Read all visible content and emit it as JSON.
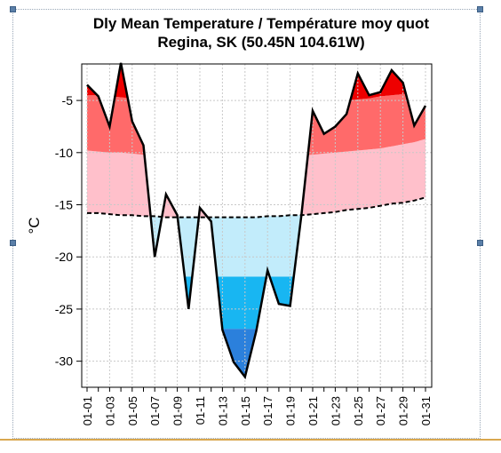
{
  "chart_data": {
    "type": "area",
    "title": "Dly Mean Temperature / Température moy quot",
    "subtitle": "Regina, SK (50.45N 104.61W)",
    "xlabel": "",
    "ylabel": "°C",
    "ylim": [
      -32.5,
      -1.5
    ],
    "yticks": [
      -5,
      -10,
      -15,
      -20,
      -25,
      -30
    ],
    "ytick_labels": [
      "-5",
      "-10",
      "-15",
      "-20",
      "-25",
      "-30"
    ],
    "x": [
      "01-01",
      "01-02",
      "01-03",
      "01-04",
      "01-05",
      "01-06",
      "01-07",
      "01-08",
      "01-09",
      "01-10",
      "01-11",
      "01-12",
      "01-13",
      "01-14",
      "01-15",
      "01-16",
      "01-17",
      "01-18",
      "01-19",
      "01-20",
      "01-21",
      "01-22",
      "01-23",
      "01-24",
      "01-25",
      "01-26",
      "01-27",
      "01-28",
      "01-29",
      "01-30",
      "01-31"
    ],
    "xtick_labels": [
      "01-01",
      "01-03",
      "01-05",
      "01-07",
      "01-09",
      "01-11",
      "01-13",
      "01-15",
      "01-17",
      "01-19",
      "01-21",
      "01-23",
      "01-25",
      "01-27",
      "01-29",
      "01-31"
    ],
    "grid": true,
    "series": [
      {
        "name": "",
        "values": [
          -3.5,
          -4.6,
          -7.5,
          -1.4,
          -7.0,
          -9.3,
          -20.0,
          -14.0,
          -16.0,
          -25.0,
          -15.3,
          -16.6,
          -27.0,
          -30.1,
          -31.5,
          -27.1,
          -21.3,
          -24.5,
          -24.7,
          -16.0,
          -6.0,
          -8.2,
          -7.5,
          -6.3,
          -2.4,
          -4.5,
          -4.2,
          -2.1,
          -3.3,
          -7.4,
          -5.5
        ]
      },
      {
        "name": "",
        "values": [
          -15.8,
          -15.8,
          -15.9,
          -16.0,
          -16.0,
          -16.1,
          -16.1,
          -16.2,
          -16.2,
          -16.2,
          -16.2,
          -16.2,
          -16.2,
          -16.2,
          -16.2,
          -16.2,
          -16.1,
          -16.1,
          -16.0,
          -16.0,
          -15.9,
          -15.8,
          -15.7,
          -15.5,
          -15.4,
          -15.3,
          -15.1,
          -14.9,
          -14.8,
          -14.6,
          -14.3
        ]
      }
    ],
    "bands": {
      "upper_outer": [
        -4.5,
        -4.5,
        -4.6,
        -4.7,
        -4.8,
        -4.9,
        -5.0,
        -5.0,
        -5.1,
        -5.1,
        -5.2,
        -5.2,
        -5.3,
        -5.4,
        -5.4,
        -5.4,
        -5.4,
        -5.4,
        -5.4,
        -5.3,
        -5.2,
        -5.1,
        -5.0,
        -5.0,
        -4.9,
        -4.8,
        -4.6,
        -4.5,
        -4.4,
        -4.3,
        -4.2
      ],
      "upper_inner": [
        -9.8,
        -9.9,
        -10.0,
        -10.0,
        -10.1,
        -10.2,
        -10.2,
        -10.3,
        -10.3,
        -10.4,
        -10.4,
        -10.4,
        -10.4,
        -10.4,
        -10.4,
        -10.4,
        -10.4,
        -10.4,
        -10.3,
        -10.3,
        -10.2,
        -10.1,
        -10.0,
        -9.9,
        -9.8,
        -9.7,
        -9.6,
        -9.4,
        -9.2,
        -9.0,
        -8.7
      ],
      "lower_inner": [
        -21.8,
        -21.8,
        -21.9,
        -21.9,
        -21.9,
        -21.9,
        -21.9,
        -21.9,
        -21.9,
        -21.9,
        -21.9,
        -21.9,
        -21.9,
        -21.9,
        -21.9,
        -21.9,
        -21.9,
        -21.9,
        -21.9,
        -21.9,
        -21.9,
        -21.9,
        -21.9,
        -21.9,
        -21.9,
        -21.9,
        -21.9,
        -21.9,
        -21.9,
        -21.9,
        -21.9
      ],
      "lower_outer": [
        -26.9,
        -26.9,
        -26.9,
        -26.9,
        -26.9,
        -26.9,
        -26.9,
        -26.9,
        -26.9,
        -26.9,
        -26.9,
        -26.9,
        -26.9,
        -26.9,
        -26.9,
        -26.9,
        -26.9,
        -26.9,
        -26.9,
        -26.9,
        -26.9,
        -26.9,
        -26.9,
        -26.9,
        -26.9,
        -26.9,
        -26.9,
        -26.9,
        -26.9,
        -26.9,
        -26.9
      ]
    },
    "colors": {
      "far_above": "#ee0000",
      "above": "#ff6a6a",
      "slightly_above": "#ffc0cb",
      "slightly_below": "#c2ecfb",
      "below": "#18b6f2",
      "far_below": "#2b80dc",
      "mean_line": "#000000",
      "normal_line": "#000000",
      "grid": "#c8c8c8"
    }
  }
}
